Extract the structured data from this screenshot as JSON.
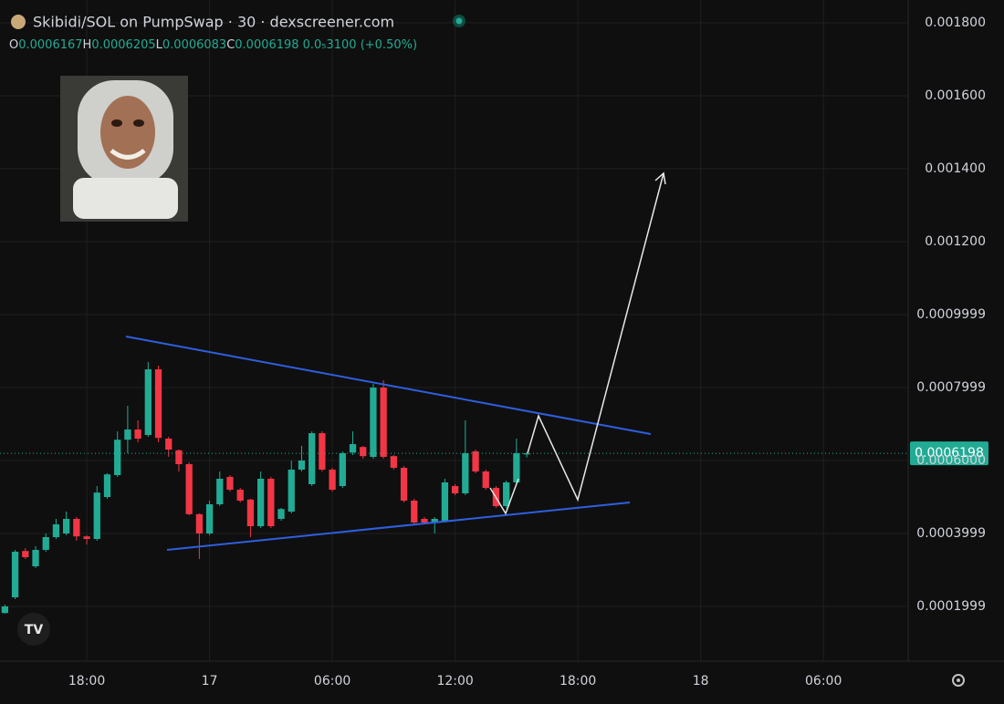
{
  "chart_data": {
    "type": "candlestick",
    "title": "Skibidi/SOL on PumpSwap · 30 · dexscreener.com",
    "ohlc_header": [
      {
        "label": "O",
        "value": 0.0006167
      },
      {
        "label": "H",
        "value": 0.0006205
      },
      {
        "label": "L",
        "value": 0.0006083
      },
      {
        "label": "C",
        "value": 0.0006198
      }
    ],
    "change_label": "0.0₅3100 (+0.50%)",
    "last_price": 0.0006198,
    "up_color": "#22ab94",
    "down_color": "#f23645",
    "grid": true,
    "xlim": [
      13.76,
      58.14
    ],
    "ylim": [
      5e-05,
      0.0018625
    ],
    "xticks": [
      {
        "value": 18,
        "label": "18:00"
      },
      {
        "value": 24,
        "label": "17"
      },
      {
        "value": 30,
        "label": "06:00"
      },
      {
        "value": 36,
        "label": "12:00"
      },
      {
        "value": 42,
        "label": "18:00"
      },
      {
        "value": 48,
        "label": "18"
      },
      {
        "value": 54,
        "label": "06:00"
      }
    ],
    "yticks": [
      {
        "value": 0.0018,
        "label": "0.001800"
      },
      {
        "value": 0.0016,
        "label": "0.001600"
      },
      {
        "value": 0.0014,
        "label": "0.001400"
      },
      {
        "value": 0.0012,
        "label": "0.001200"
      },
      0.0009999,
      0.0007999,
      {
        "value": 0.0006,
        "label": "0.0006000"
      },
      0.0003999,
      0.0001999
    ],
    "x": [
      14,
      14.5,
      15,
      15.5,
      16,
      16.5,
      17,
      17.5,
      18,
      18.5,
      19,
      19.5,
      20,
      20.5,
      21,
      21.5,
      22,
      22.5,
      23,
      23.5,
      24,
      24.5,
      25,
      25.5,
      26,
      26.5,
      27,
      27.5,
      28,
      28.5,
      29,
      29.5,
      30,
      30.5,
      31,
      31.5,
      32,
      32.5,
      33,
      33.5,
      34,
      34.5,
      35,
      35.5,
      36,
      36.5,
      37,
      37.5,
      38,
      38.5,
      39,
      39.5
    ],
    "open": [
      0.000182,
      0.000225,
      0.000352,
      0.00031,
      0.000355,
      0.00039,
      0.0004,
      0.00044,
      0.000392,
      0.000385,
      0.0005,
      0.00056,
      0.000657,
      0.000685,
      0.00067,
      0.00085,
      0.00066,
      0.000628,
      0.00059,
      0.000453,
      0.0004,
      0.00048,
      0.000555,
      0.00052,
      0.000493,
      0.00042,
      0.00055,
      0.00044,
      0.00046,
      0.000575,
      0.000535,
      0.000675,
      0.000575,
      0.00053,
      0.000622,
      0.000637,
      0.00061,
      0.0008,
      0.000612,
      0.00058,
      0.00049,
      0.00044,
      0.00043,
      0.000435,
      0.00053,
      0.00051,
      0.000625,
      0.00057,
      0.000525,
      0.000475,
      0.00054,
      0.0006167
    ],
    "high": [
      0.000205,
      0.000355,
      0.00036,
      0.000365,
      0.0004,
      0.00044,
      0.00046,
      0.000445,
      0.000395,
      0.00053,
      0.000565,
      0.00068,
      0.00075,
      0.00071,
      0.00087,
      0.00086,
      0.000665,
      0.00063,
      0.000595,
      0.000455,
      0.00049,
      0.00057,
      0.00056,
      0.000525,
      0.000495,
      0.00057,
      0.000555,
      0.00047,
      0.0006,
      0.00064,
      0.00068,
      0.00068,
      0.00058,
      0.000625,
      0.00068,
      0.00064,
      0.00081,
      0.00082,
      0.000615,
      0.000585,
      0.000495,
      0.000445,
      0.000445,
      0.00055,
      0.000535,
      0.00071,
      0.00063,
      0.000575,
      0.00053,
      0.000545,
      0.00066,
      0.0006205
    ],
    "low": [
      0.00018,
      0.00022,
      0.00033,
      0.000305,
      0.00035,
      0.000385,
      0.000395,
      0.00038,
      0.00037,
      0.00038,
      0.000495,
      0.000555,
      0.00062,
      0.00065,
      0.000665,
      0.00065,
      0.00061,
      0.00057,
      0.00045,
      0.00033,
      0.000395,
      0.000475,
      0.000515,
      0.000485,
      0.00039,
      0.000415,
      0.000415,
      0.000435,
      0.000455,
      0.00057,
      0.00053,
      0.00057,
      0.000515,
      0.000525,
      0.000615,
      0.000605,
      0.000605,
      0.000605,
      0.000575,
      0.000485,
      0.000425,
      0.000425,
      0.0004,
      0.00043,
      0.000505,
      0.000505,
      0.000565,
      0.00052,
      0.00047,
      0.00047,
      0.000535,
      0.0006083
    ],
    "close": [
      0.0002,
      0.00035,
      0.000335,
      0.000355,
      0.00039,
      0.000425,
      0.00044,
      0.000392,
      0.000385,
      0.000512,
      0.000562,
      0.000657,
      0.000685,
      0.00066,
      0.00085,
      0.000662,
      0.00063,
      0.00059,
      0.000453,
      0.0004,
      0.00048,
      0.00055,
      0.00052,
      0.00049,
      0.00042,
      0.00055,
      0.00042,
      0.000467,
      0.000575,
      0.0006,
      0.000675,
      0.000575,
      0.00052,
      0.00062,
      0.000645,
      0.000612,
      0.0008,
      0.00061,
      0.00058,
      0.00049,
      0.00043,
      0.00043,
      0.00044,
      0.00054,
      0.00051,
      0.00062,
      0.00057,
      0.000525,
      0.000475,
      0.00054,
      0.00062,
      0.0006198
    ]
  }
}
